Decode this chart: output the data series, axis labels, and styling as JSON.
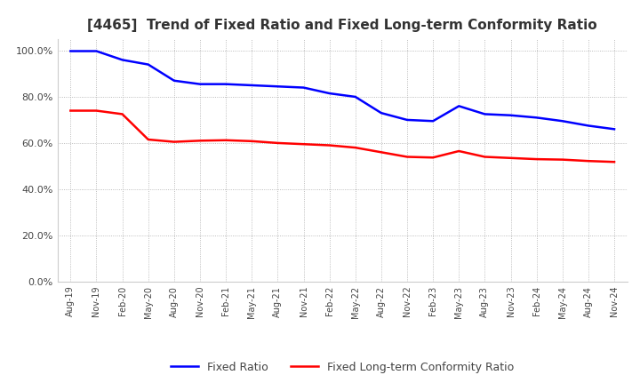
{
  "title": "[4465]  Trend of Fixed Ratio and Fixed Long-term Conformity Ratio",
  "title_fontsize": 11,
  "ylim": [
    0.0,
    1.05
  ],
  "yticks": [
    0.0,
    0.2,
    0.4,
    0.6,
    0.8,
    1.0
  ],
  "background_color": "#ffffff",
  "grid_color": "#aaaaaa",
  "fixed_ratio_color": "#0000ff",
  "fixed_lt_color": "#ff0000",
  "x_labels": [
    "Aug-19",
    "Nov-19",
    "Feb-20",
    "May-20",
    "Aug-20",
    "Nov-20",
    "Feb-21",
    "May-21",
    "Aug-21",
    "Nov-21",
    "Feb-22",
    "May-22",
    "Aug-22",
    "Nov-22",
    "Feb-23",
    "May-23",
    "Aug-23",
    "Nov-23",
    "Feb-24",
    "May-24",
    "Aug-24",
    "Nov-24"
  ],
  "fixed_ratio": [
    0.998,
    0.998,
    0.96,
    0.94,
    0.87,
    0.855,
    0.855,
    0.85,
    0.845,
    0.84,
    0.815,
    0.8,
    0.73,
    0.7,
    0.695,
    0.76,
    0.725,
    0.72,
    0.71,
    0.695,
    0.675,
    0.66
  ],
  "fixed_lt_ratio": [
    0.74,
    0.74,
    0.725,
    0.615,
    0.605,
    0.61,
    0.612,
    0.608,
    0.6,
    0.595,
    0.59,
    0.58,
    0.56,
    0.54,
    0.537,
    0.565,
    0.54,
    0.535,
    0.53,
    0.528,
    0.522,
    0.518
  ],
  "legend_labels": [
    "Fixed Ratio",
    "Fixed Long-term Conformity Ratio"
  ]
}
